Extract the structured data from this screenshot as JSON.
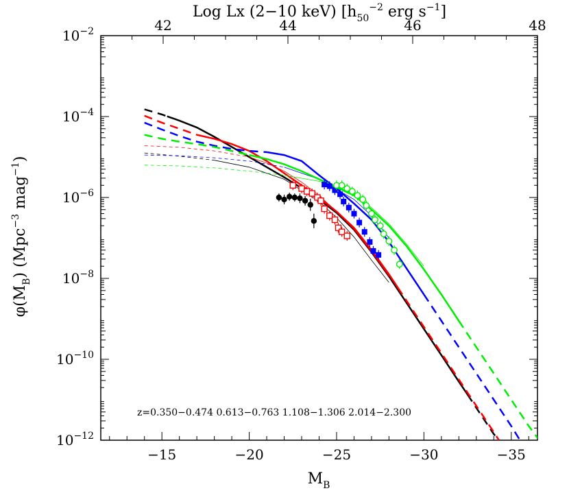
{
  "chart_data": {
    "type": "line",
    "xlabel": "M",
    "xlabel_sub": "B",
    "ylabel_parts": [
      "φ(M",
      "B",
      ") (Mpc",
      "−3",
      " mag",
      "−1",
      ")"
    ],
    "top_axis_label_parts": [
      "Log Lx (2−10 keV) [h",
      "50",
      "−2",
      " erg s",
      "−1",
      "]"
    ],
    "xlim": [
      -11.5,
      -36.5
    ],
    "ylog_lim": [
      -12,
      -2
    ],
    "toplim": [
      41.0,
      48.0
    ],
    "x_ticks": [
      -15,
      -20,
      -25,
      -30,
      -35
    ],
    "x_tick_labels": [
      "−15",
      "−20",
      "−25",
      "−30",
      "−35"
    ],
    "top_ticks": [
      42,
      44,
      46,
      48
    ],
    "top_tick_labels": [
      "42",
      "44",
      "46",
      "48"
    ],
    "y_ticks": [
      -12,
      -10,
      -8,
      -6,
      -4,
      -2
    ],
    "y_tick_base": "10",
    "y_tick_exponents": [
      "−12",
      "−10",
      "−8",
      "−6",
      "−4",
      "−2"
    ],
    "annotation": "z=0.350−0.474  0.613−0.763  1.108−1.306  2.014−2.300",
    "series": [
      {
        "color": "#000000",
        "model_thick": [
          [
            -14,
            -3.82
          ],
          [
            -15,
            -3.95
          ],
          [
            -16,
            -4.1
          ],
          [
            -17,
            -4.27
          ],
          [
            -18,
            -4.5
          ],
          [
            -19,
            -4.75
          ],
          [
            -20,
            -5.0
          ],
          [
            -21,
            -5.25
          ],
          [
            -22,
            -5.5
          ],
          [
            -23,
            -5.77
          ],
          [
            -24,
            -6.05
          ],
          [
            -25,
            -6.38
          ],
          [
            -26,
            -6.8
          ],
          [
            -27,
            -7.35
          ],
          [
            -28,
            -7.95
          ],
          [
            -29,
            -8.6
          ],
          [
            -30,
            -9.25
          ],
          [
            -31,
            -9.9
          ],
          [
            -32,
            -10.55
          ],
          [
            -33,
            -11.2
          ],
          [
            -34,
            -11.85
          ],
          [
            -34.3,
            -12.0
          ]
        ],
        "model_thin": [
          [
            -14,
            -4.9
          ],
          [
            -16,
            -4.98
          ],
          [
            -18,
            -5.08
          ],
          [
            -20,
            -5.25
          ],
          [
            -22,
            -5.55
          ],
          [
            -24,
            -6.1
          ],
          [
            -25,
            -6.5
          ],
          [
            -26,
            -6.98
          ],
          [
            -27,
            -7.55
          ],
          [
            -28,
            -8.1
          ]
        ],
        "solid_range": [
          -15.3,
          -32.5
        ],
        "thin_solid_from": -18,
        "points": [
          [
            -21.7,
            -6.0,
            0.1
          ],
          [
            -22.0,
            -6.05,
            0.12
          ],
          [
            -22.3,
            -5.98,
            0.1
          ],
          [
            -22.6,
            -6.0,
            0.1
          ],
          [
            -22.9,
            -6.02,
            0.12
          ],
          [
            -23.2,
            -6.08,
            0.12
          ],
          [
            -23.5,
            -6.18,
            0.15
          ],
          [
            -23.7,
            -6.58,
            0.18
          ]
        ],
        "marker": "filled-circle"
      },
      {
        "color": "#ff0000",
        "model_thick": [
          [
            -14,
            -3.98
          ],
          [
            -15,
            -4.15
          ],
          [
            -16,
            -4.3
          ],
          [
            -17,
            -4.45
          ],
          [
            -18,
            -4.55
          ],
          [
            -19,
            -4.68
          ],
          [
            -20,
            -4.85
          ],
          [
            -21,
            -5.1
          ],
          [
            -22,
            -5.4
          ],
          [
            -23,
            -5.7
          ],
          [
            -24,
            -6.0
          ],
          [
            -25,
            -6.35
          ],
          [
            -26,
            -6.75
          ],
          [
            -27,
            -7.3
          ],
          [
            -28,
            -7.9
          ],
          [
            -29,
            -8.55
          ],
          [
            -30,
            -9.2
          ],
          [
            -31,
            -9.85
          ],
          [
            -32,
            -10.5
          ],
          [
            -33,
            -11.15
          ],
          [
            -34,
            -11.8
          ],
          [
            -34.3,
            -12.0
          ]
        ],
        "model_thin": [
          [
            -14,
            -4.72
          ],
          [
            -16,
            -4.76
          ],
          [
            -18,
            -4.85
          ],
          [
            -20,
            -5.0
          ],
          [
            -21,
            -5.15
          ],
          [
            -22,
            -5.35
          ],
          [
            -23,
            -5.62
          ],
          [
            -24,
            -5.95
          ],
          [
            -25,
            -6.35
          ],
          [
            -26,
            -6.8
          ],
          [
            -27,
            -7.35
          ],
          [
            -28,
            -7.95
          ]
        ],
        "solid_range": [
          -17.0,
          -28.5
        ],
        "thin_solid_from": -20,
        "points": [
          [
            -22.5,
            -5.7
          ],
          [
            -23.0,
            -5.78
          ],
          [
            -23.3,
            -5.85
          ],
          [
            -23.6,
            -5.9
          ],
          [
            -23.9,
            -6.0
          ],
          [
            -24.1,
            -6.08
          ],
          [
            -24.3,
            -6.28
          ],
          [
            -24.6,
            -6.45
          ],
          [
            -24.9,
            -6.55
          ],
          [
            -25.1,
            -6.75
          ],
          [
            -25.3,
            -6.85
          ],
          [
            -25.6,
            -6.95
          ]
        ],
        "marker": "open-square"
      },
      {
        "color": "#0000ff",
        "model_thick": [
          [
            -14,
            -4.15
          ],
          [
            -15,
            -4.32
          ],
          [
            -16,
            -4.48
          ],
          [
            -17,
            -4.62
          ],
          [
            -18,
            -4.72
          ],
          [
            -19,
            -4.8
          ],
          [
            -20,
            -4.85
          ],
          [
            -21,
            -4.88
          ],
          [
            -22,
            -4.95
          ],
          [
            -23,
            -5.1
          ],
          [
            -24,
            -5.45
          ],
          [
            -25,
            -5.78
          ],
          [
            -26,
            -6.15
          ],
          [
            -27,
            -6.55
          ],
          [
            -28,
            -7.1
          ],
          [
            -29,
            -7.75
          ],
          [
            -30,
            -8.4
          ],
          [
            -31,
            -9.05
          ],
          [
            -32,
            -9.7
          ],
          [
            -33,
            -10.35
          ],
          [
            -34,
            -11.0
          ],
          [
            -35,
            -11.65
          ],
          [
            -35.5,
            -12.0
          ]
        ],
        "model_thin": [
          [
            -14,
            -4.95
          ],
          [
            -16,
            -4.97
          ],
          [
            -18,
            -5.02
          ],
          [
            -20,
            -5.1
          ],
          [
            -22,
            -5.25
          ],
          [
            -24,
            -5.55
          ],
          [
            -26,
            -6.05
          ],
          [
            -27,
            -6.45
          ],
          [
            -28,
            -7.0
          ]
        ],
        "solid_range": [
          -21.0,
          -30.0
        ],
        "thin_solid_from": -22,
        "points": [
          [
            -24.3,
            -5.68
          ],
          [
            -24.6,
            -5.72
          ],
          [
            -24.9,
            -5.82
          ],
          [
            -25.2,
            -5.92
          ],
          [
            -25.4,
            -6.1
          ],
          [
            -25.7,
            -6.25
          ],
          [
            -26.0,
            -6.4
          ],
          [
            -26.3,
            -6.62
          ],
          [
            -26.6,
            -6.85
          ],
          [
            -26.9,
            -7.1
          ],
          [
            -27.1,
            -7.32
          ],
          [
            -27.4,
            -7.42
          ]
        ],
        "marker": "filled-square"
      },
      {
        "color": "#00ee00",
        "model_thick": [
          [
            -14,
            -4.45
          ],
          [
            -15,
            -4.55
          ],
          [
            -16,
            -4.62
          ],
          [
            -17,
            -4.68
          ],
          [
            -18,
            -4.75
          ],
          [
            -19,
            -4.85
          ],
          [
            -20,
            -4.95
          ],
          [
            -21,
            -5.05
          ],
          [
            -22,
            -5.18
          ],
          [
            -23,
            -5.35
          ],
          [
            -24,
            -5.55
          ],
          [
            -25,
            -5.75
          ],
          [
            -26,
            -5.95
          ],
          [
            -27,
            -6.3
          ],
          [
            -28,
            -6.7
          ],
          [
            -29,
            -7.2
          ],
          [
            -30,
            -7.78
          ],
          [
            -31,
            -8.4
          ],
          [
            -32,
            -9.05
          ],
          [
            -33,
            -9.7
          ],
          [
            -34,
            -10.35
          ],
          [
            -35,
            -11.0
          ],
          [
            -36,
            -11.65
          ],
          [
            -36.6,
            -12.0
          ]
        ],
        "model_thin": [
          [
            -14,
            -5.2
          ],
          [
            -16,
            -5.22
          ],
          [
            -18,
            -5.27
          ],
          [
            -20,
            -5.35
          ],
          [
            -22,
            -5.45
          ],
          [
            -24,
            -5.6
          ],
          [
            -25,
            -5.72
          ],
          [
            -26,
            -5.92
          ],
          [
            -27,
            -6.25
          ],
          [
            -28,
            -6.65
          ],
          [
            -29,
            -7.15
          ],
          [
            -30,
            -7.7
          ]
        ],
        "solid_range": [
          -20.0,
          -32.0
        ],
        "thin_solid_from": -22,
        "points": [
          [
            -25.0,
            -5.7
          ],
          [
            -25.3,
            -5.7
          ],
          [
            -25.6,
            -5.78
          ],
          [
            -25.9,
            -5.85
          ],
          [
            -26.2,
            -5.95
          ],
          [
            -26.5,
            -6.05
          ],
          [
            -26.7,
            -6.2
          ],
          [
            -27.0,
            -6.4
          ],
          [
            -27.2,
            -6.55
          ],
          [
            -27.5,
            -6.7
          ],
          [
            -27.7,
            -6.9
          ],
          [
            -28.0,
            -7.08
          ],
          [
            -28.3,
            -7.3
          ],
          [
            -28.6,
            -7.65
          ]
        ],
        "marker": "open-circle"
      }
    ]
  }
}
